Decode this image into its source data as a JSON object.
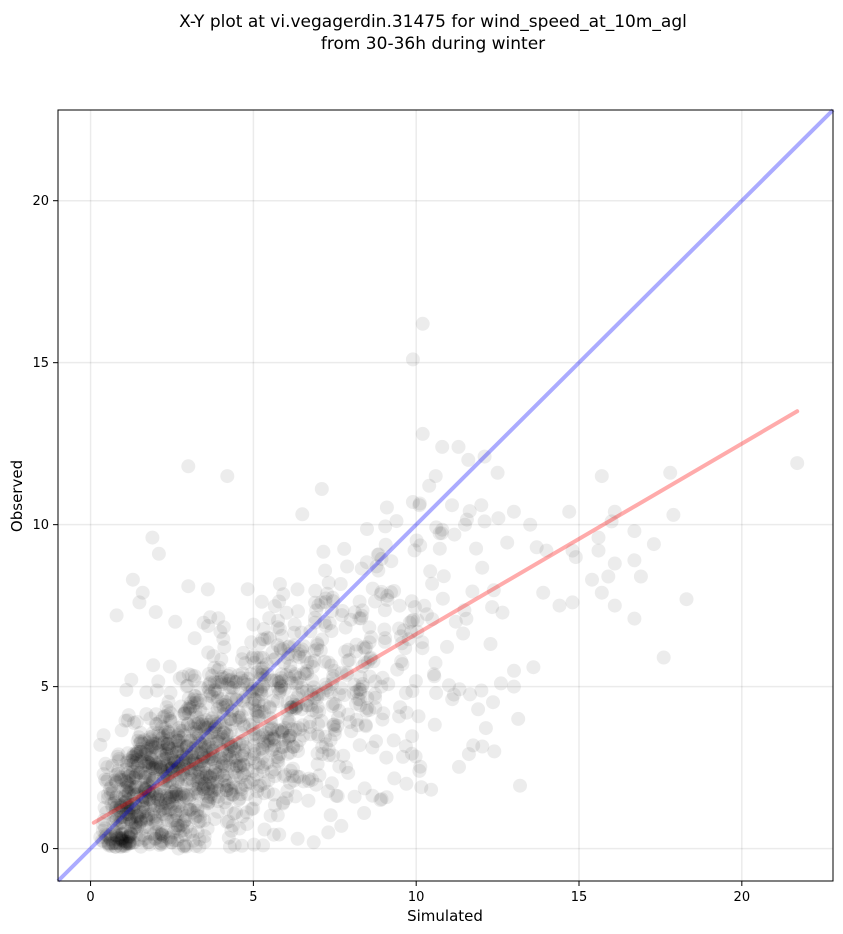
{
  "chart_data": {
    "type": "scatter",
    "title_line1": "X-Y plot at vi.vegagerdin.31475 for wind_speed_at_10m_agl",
    "title_line2": "from 30-36h during winter",
    "xlabel": "Simulated",
    "ylabel": "Observed",
    "xlim": [
      -1,
      22.8
    ],
    "ylim": [
      -1,
      22.8
    ],
    "x_ticks": [
      0,
      5,
      10,
      15,
      20
    ],
    "y_ticks": [
      0,
      5,
      10,
      15,
      20
    ],
    "grid": true,
    "point_color": "#000000",
    "identity_line": {
      "color": "#0000ff",
      "from": [
        -1,
        -1
      ],
      "to": [
        22.8,
        22.8
      ]
    },
    "fit_line": {
      "color": "#ff0000",
      "from": [
        0.1,
        0.8
      ],
      "to": [
        21.7,
        13.5
      ]
    },
    "outlier_points": [
      [
        10.2,
        16.2
      ],
      [
        9.9,
        15.1
      ],
      [
        10.2,
        12.8
      ],
      [
        10.8,
        12.4
      ],
      [
        11.3,
        12.4
      ],
      [
        12.1,
        12.1
      ],
      [
        11.6,
        12.0
      ],
      [
        3.0,
        11.8
      ],
      [
        4.2,
        11.5
      ],
      [
        10.6,
        11.5
      ],
      [
        12.5,
        11.6
      ],
      [
        15.7,
        11.5
      ],
      [
        17.8,
        11.6
      ],
      [
        21.7,
        11.9
      ],
      [
        7.1,
        11.1
      ],
      [
        10.4,
        11.2
      ],
      [
        9.9,
        10.7
      ],
      [
        10.1,
        10.6
      ],
      [
        11.1,
        10.6
      ],
      [
        12.0,
        10.6
      ],
      [
        13.0,
        10.4
      ],
      [
        14.7,
        10.4
      ],
      [
        16.1,
        10.4
      ],
      [
        17.9,
        10.3
      ],
      [
        12.1,
        10.1
      ],
      [
        13.5,
        10.0
      ],
      [
        16.0,
        10.1
      ],
      [
        11.5,
        10.0
      ],
      [
        16.7,
        9.8
      ],
      [
        15.6,
        9.6
      ],
      [
        17.3,
        9.4
      ],
      [
        14.8,
        9.2
      ],
      [
        15.6,
        9.2
      ],
      [
        14.9,
        9.0
      ],
      [
        13.7,
        9.3
      ],
      [
        14.0,
        9.2
      ],
      [
        16.1,
        8.8
      ],
      [
        16.7,
        8.9
      ],
      [
        15.4,
        8.3
      ],
      [
        15.9,
        8.4
      ],
      [
        16.9,
        8.4
      ],
      [
        15.7,
        7.9
      ],
      [
        16.1,
        7.5
      ],
      [
        18.3,
        7.7
      ],
      [
        16.7,
        7.1
      ],
      [
        17.6,
        5.9
      ],
      [
        14.8,
        7.6
      ],
      [
        14.4,
        7.5
      ],
      [
        13.9,
        7.9
      ],
      [
        13.6,
        5.6
      ],
      [
        12.6,
        5.1
      ],
      [
        12.4,
        3.0
      ],
      [
        13.0,
        5.0
      ],
      [
        11.9,
        4.3
      ],
      [
        1.3,
        8.3
      ],
      [
        1.5,
        7.6
      ],
      [
        2.0,
        7.3
      ],
      [
        0.8,
        7.2
      ],
      [
        1.9,
        9.6
      ],
      [
        2.1,
        9.1
      ],
      [
        1.6,
        7.9
      ],
      [
        3.0,
        8.1
      ],
      [
        3.6,
        8.0
      ],
      [
        2.6,
        7.0
      ],
      [
        1.1,
        4.9
      ],
      [
        0.4,
        3.5
      ],
      [
        0.3,
        3.2
      ],
      [
        9.7,
        2.0
      ],
      [
        10.1,
        2.4
      ],
      [
        8.9,
        1.5
      ],
      [
        8.4,
        1.1
      ],
      [
        7.7,
        0.7
      ],
      [
        7.3,
        0.5
      ],
      [
        5.3,
        0.1
      ],
      [
        2.7,
        0.0
      ],
      [
        0.8,
        0.9
      ],
      [
        0.4,
        2.3
      ],
      [
        1.8,
        0.2
      ]
    ],
    "cloud_seed": 12345,
    "cloud_point_count": 1600
  }
}
